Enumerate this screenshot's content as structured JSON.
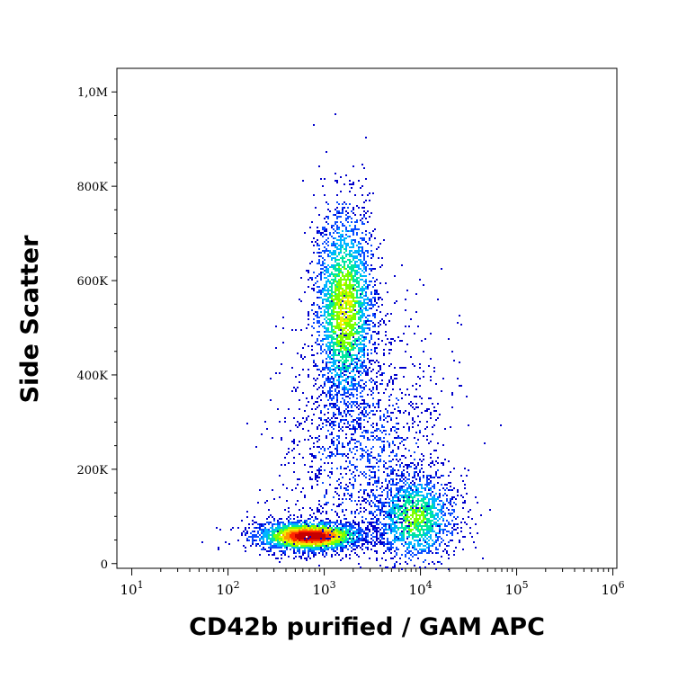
{
  "chart_data": {
    "type": "scatter",
    "title": "",
    "xlabel": "CD42b purified / GAM APC",
    "ylabel": "Side Scatter",
    "x_scale": "log",
    "xlim": [
      7,
      1100000
    ],
    "ylim": [
      -10000,
      1050000
    ],
    "x_ticks": [
      {
        "value": 10,
        "base": "10",
        "exp": "1"
      },
      {
        "value": 100,
        "base": "10",
        "exp": "2"
      },
      {
        "value": 1000,
        "base": "10",
        "exp": "3"
      },
      {
        "value": 10000,
        "base": "10",
        "exp": "4"
      },
      {
        "value": 100000,
        "base": "10",
        "exp": "5"
      },
      {
        "value": 1000000,
        "base": "10",
        "exp": "6"
      }
    ],
    "y_ticks": [
      {
        "value": 0,
        "label": "0"
      },
      {
        "value": 200000,
        "label": "200K"
      },
      {
        "value": 400000,
        "label": "400K"
      },
      {
        "value": 600000,
        "label": "600K"
      },
      {
        "value": 800000,
        "label": "800K"
      },
      {
        "value": 1000000,
        "label": "1,0M"
      }
    ],
    "density_colors": [
      "#0000cc",
      "#0a4cff",
      "#00b4ff",
      "#00e6a0",
      "#7dff00",
      "#f0f000",
      "#ff9600",
      "#ff2800",
      "#c80000"
    ],
    "populations": [
      {
        "x_center": 700,
        "y_center": 60000,
        "x_spread_decades": 0.28,
        "y_spread": 16000,
        "count": 2600,
        "peak_density": 1.0
      },
      {
        "x_center": 1600,
        "y_center": 540000,
        "x_spread_decades": 0.16,
        "y_spread": 110000,
        "count": 2600,
        "peak_density": 0.55
      },
      {
        "x_center": 8500,
        "y_center": 100000,
        "x_spread_decades": 0.22,
        "y_spread": 50000,
        "count": 1500,
        "peak_density": 0.45
      },
      {
        "x_center": 2500,
        "y_center": 250000,
        "x_spread_decades": 0.4,
        "y_spread": 130000,
        "count": 1500,
        "peak_density": 0.1
      }
    ],
    "grid": false
  }
}
